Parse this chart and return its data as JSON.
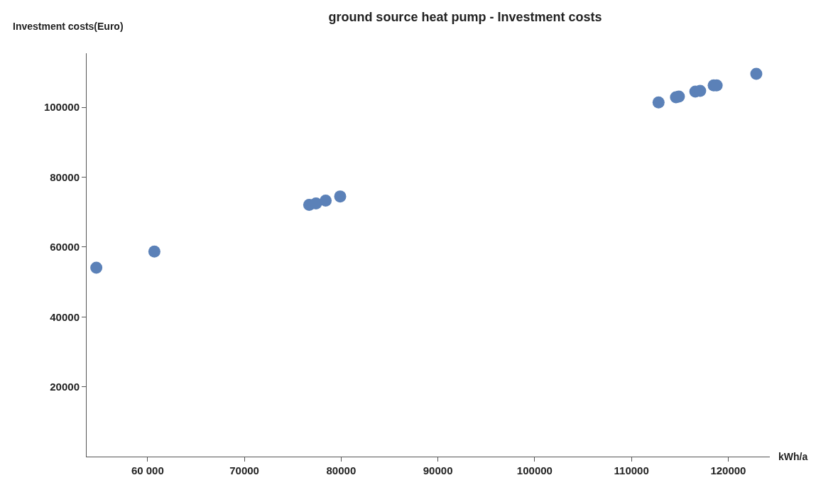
{
  "chart_data": {
    "type": "scatter",
    "title": "ground source heat pump - Investment costs",
    "xlabel": "kWh/a",
    "ylabel": "Investment costs(Euro)",
    "x": [
      54700,
      60700,
      76700,
      77400,
      78400,
      79900,
      112800,
      114600,
      114900,
      116600,
      117100,
      118500,
      118800,
      122900
    ],
    "series": [
      {
        "color": "#5b81b8",
        "values": [
          54100,
          58700,
          72100,
          72500,
          73300,
          74500,
          101400,
          102900,
          103100,
          104500,
          104700,
          106300,
          106300,
          109600
        ]
      }
    ],
    "xlim": [
      53700,
      124300
    ],
    "ylim": [
      0,
      115500
    ],
    "xticks": [
      {
        "value": 60000,
        "label": "60 000"
      },
      {
        "value": 70000,
        "label": "70000"
      },
      {
        "value": 80000,
        "label": "80000"
      },
      {
        "value": 90000,
        "label": "90000"
      },
      {
        "value": 100000,
        "label": "100000"
      },
      {
        "value": 110000,
        "label": "110000"
      },
      {
        "value": 120000,
        "label": "120000"
      }
    ],
    "yticks": [
      {
        "value": 20000,
        "label": "20000"
      },
      {
        "value": 40000,
        "label": "40000"
      },
      {
        "value": 60000,
        "label": "60000"
      },
      {
        "value": 80000,
        "label": "80000"
      },
      {
        "value": 100000,
        "label": "100000"
      }
    ],
    "legend": false,
    "marker": "circle"
  }
}
